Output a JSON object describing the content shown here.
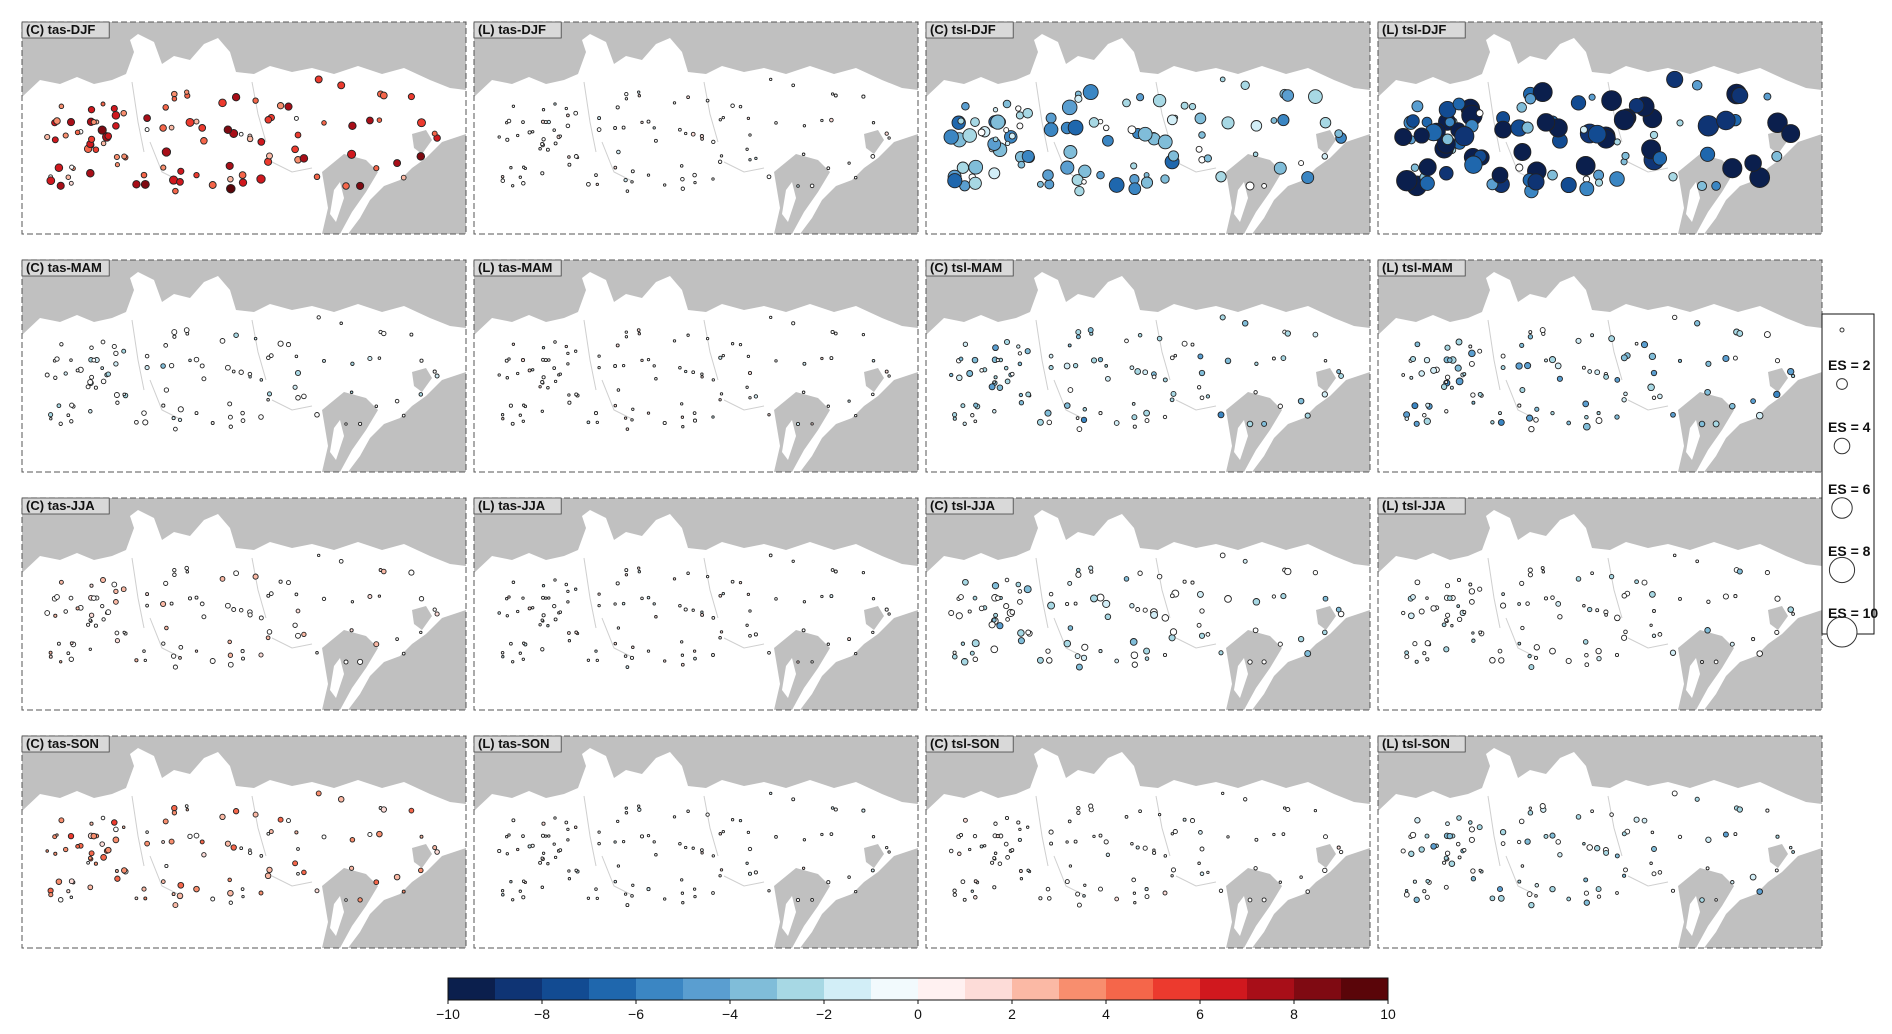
{
  "figure": {
    "panels": [
      {
        "title": "(C) tas-DJF",
        "model": "C",
        "variable": "tas",
        "season": "DJF"
      },
      {
        "title": "(L) tas-DJF",
        "model": "L",
        "variable": "tas",
        "season": "DJF"
      },
      {
        "title": "(C) tsl-DJF",
        "model": "C",
        "variable": "tsl",
        "season": "DJF"
      },
      {
        "title": "(L) tsl-DJF",
        "model": "L",
        "variable": "tsl",
        "season": "DJF"
      },
      {
        "title": "(C) tas-MAM",
        "model": "C",
        "variable": "tas",
        "season": "MAM"
      },
      {
        "title": "(L) tas-MAM",
        "model": "L",
        "variable": "tas",
        "season": "MAM"
      },
      {
        "title": "(C) tsl-MAM",
        "model": "C",
        "variable": "tsl",
        "season": "MAM"
      },
      {
        "title": "(L) tsl-MAM",
        "model": "L",
        "variable": "tsl",
        "season": "MAM"
      },
      {
        "title": "(C) tas-JJA",
        "model": "C",
        "variable": "tas",
        "season": "JJA"
      },
      {
        "title": "(L) tas-JJA",
        "model": "L",
        "variable": "tas",
        "season": "JJA"
      },
      {
        "title": "(C) tsl-JJA",
        "model": "C",
        "variable": "tsl",
        "season": "JJA"
      },
      {
        "title": "(L) tsl-JJA",
        "model": "L",
        "variable": "tsl",
        "season": "JJA"
      },
      {
        "title": "(C) tas-SON",
        "model": "C",
        "variable": "tas",
        "season": "SON"
      },
      {
        "title": "(L) tas-SON",
        "model": "L",
        "variable": "tas",
        "season": "SON"
      },
      {
        "title": "(C) tsl-SON",
        "model": "C",
        "variable": "tsl",
        "season": "SON"
      },
      {
        "title": "(L) tsl-SON",
        "model": "L",
        "variable": "tsl",
        "season": "SON"
      }
    ],
    "colorbar": {
      "min": -10,
      "max": 10,
      "step": 1,
      "tick_labels": [
        "-10",
        "-8",
        "-6",
        "-4",
        "-2",
        "0",
        "2",
        "4",
        "6",
        "8",
        "10"
      ],
      "colors": [
        "#0b1f4d",
        "#0f3474",
        "#124b92",
        "#1f67ad",
        "#3b86c3",
        "#5a9ed0",
        "#80bdd9",
        "#a7d8e4",
        "#d2eef7",
        "#f2fafd",
        "#fff1f1",
        "#fddcd8",
        "#fbb9a5",
        "#f88e6e",
        "#f5664a",
        "#ec3a2e",
        "#d0181e",
        "#a80e18",
        "#7f0a12",
        "#5a0509"
      ]
    },
    "size_legend": {
      "entries": [
        {
          "label": "ES = 2",
          "value": 2
        },
        {
          "label": "ES = 4",
          "value": 4
        },
        {
          "label": "ES = 6",
          "value": 6
        },
        {
          "label": "ES = 8",
          "value": 8
        },
        {
          "label": "ES = 10",
          "value": 10
        }
      ]
    },
    "map_colors": {
      "land": "#ffffff",
      "sea": "#c0c0c0",
      "marker_edge": "#222222"
    }
  }
}
